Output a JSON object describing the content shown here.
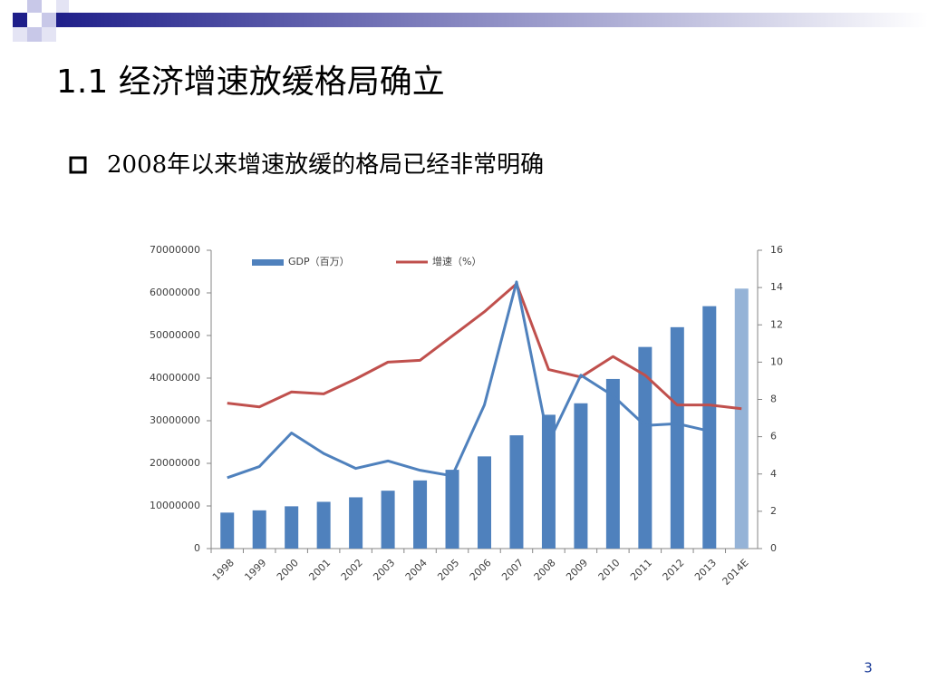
{
  "title": "1.1 经济增速放缓格局确立",
  "bullet": "2008年以来增速放缓的格局已经非常明确",
  "page_number": "3",
  "chart_data": {
    "type": "combo",
    "categories": [
      "1998",
      "1999",
      "2000",
      "2001",
      "2002",
      "2003",
      "2004",
      "2005",
      "2006",
      "2007",
      "2008",
      "2009",
      "2010",
      "2011",
      "2012",
      "2013",
      "2014E"
    ],
    "series": [
      {
        "name": "GDP（百万）",
        "type": "bar",
        "color": "#4f81bd",
        "colors": [
          "#4f81bd",
          "#4f81bd",
          "#4f81bd",
          "#4f81bd",
          "#4f81bd",
          "#4f81bd",
          "#4f81bd",
          "#4f81bd",
          "#4f81bd",
          "#4f81bd",
          "#4f81bd",
          "#4f81bd",
          "#4f81bd",
          "#4f81bd",
          "#4f81bd",
          "#4f81bd",
          "#95b3d7"
        ],
        "values": [
          8440000,
          8970000,
          9920000,
          10970000,
          12030000,
          13580000,
          15990000,
          18490000,
          21630000,
          26580000,
          31400000,
          34090000,
          39800000,
          47310000,
          51950000,
          56880000,
          61000000
        ]
      },
      {
        "name": "增速（%）",
        "type": "line",
        "axis": "y2",
        "color": "#c0504d",
        "values": [
          7.8,
          7.6,
          8.4,
          8.3,
          9.1,
          10.0,
          10.1,
          11.4,
          12.7,
          14.2,
          9.6,
          9.2,
          10.3,
          9.3,
          7.7,
          7.7,
          7.5
        ]
      },
      {
        "type": "line",
        "axis": "y2",
        "color": "#4f81bd",
        "values": [
          3.8,
          4.4,
          6.2,
          5.1,
          4.3,
          4.7,
          4.2,
          3.9,
          7.7,
          14.3,
          5.7,
          9.3,
          8.2,
          6.6,
          6.7,
          6.3,
          null
        ]
      }
    ],
    "ylim": [
      0,
      70000000
    ],
    "yticks": [
      0,
      10000000,
      20000000,
      30000000,
      40000000,
      50000000,
      60000000,
      70000000
    ],
    "y2lim": [
      0,
      16
    ],
    "y2ticks": [
      0,
      2,
      4,
      6,
      8,
      10,
      12,
      14,
      16
    ]
  }
}
